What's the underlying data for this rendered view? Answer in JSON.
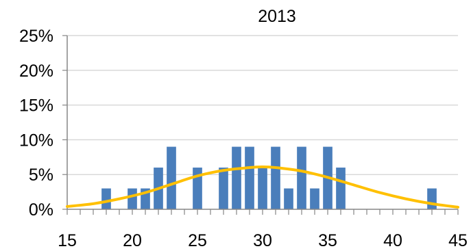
{
  "chart_data": {
    "type": "bar",
    "title": "2013",
    "xlabel": "",
    "ylabel": "",
    "xlim": [
      15,
      45
    ],
    "ylim": [
      0,
      25
    ],
    "x_ticks": [
      15,
      20,
      25,
      30,
      35,
      40,
      45
    ],
    "x_tick_labels": [
      "15",
      "20",
      "25",
      "30",
      "35",
      "40",
      "45"
    ],
    "y_ticks": [
      0,
      5,
      10,
      15,
      20,
      25
    ],
    "y_tick_labels": [
      "0%",
      "5%",
      "10%",
      "15%",
      "20%",
      "25%"
    ],
    "grid": "horizontal",
    "legend": "none",
    "series": [
      {
        "type": "bar",
        "color": "#4a7ebb",
        "points": [
          {
            "x": 18,
            "y": 3
          },
          {
            "x": 20,
            "y": 3
          },
          {
            "x": 21,
            "y": 3
          },
          {
            "x": 22,
            "y": 6
          },
          {
            "x": 23,
            "y": 9
          },
          {
            "x": 25,
            "y": 6
          },
          {
            "x": 27,
            "y": 6
          },
          {
            "x": 28,
            "y": 9
          },
          {
            "x": 29,
            "y": 9
          },
          {
            "x": 30,
            "y": 6
          },
          {
            "x": 31,
            "y": 9
          },
          {
            "x": 32,
            "y": 3
          },
          {
            "x": 33,
            "y": 9
          },
          {
            "x": 34,
            "y": 3
          },
          {
            "x": 35,
            "y": 9
          },
          {
            "x": 36,
            "y": 6
          },
          {
            "x": 43,
            "y": 3
          }
        ]
      },
      {
        "type": "line",
        "color": "#ffc000",
        "smooth": true,
        "points": [
          {
            "x": 15,
            "y": 0.4
          },
          {
            "x": 17,
            "y": 0.8
          },
          {
            "x": 19,
            "y": 1.5
          },
          {
            "x": 21,
            "y": 2.4
          },
          {
            "x": 23,
            "y": 3.6
          },
          {
            "x": 25,
            "y": 4.8
          },
          {
            "x": 27,
            "y": 5.6
          },
          {
            "x": 29,
            "y": 6.0
          },
          {
            "x": 30,
            "y": 6.1
          },
          {
            "x": 31,
            "y": 6.0
          },
          {
            "x": 33,
            "y": 5.5
          },
          {
            "x": 35,
            "y": 4.6
          },
          {
            "x": 37,
            "y": 3.5
          },
          {
            "x": 39,
            "y": 2.4
          },
          {
            "x": 41,
            "y": 1.5
          },
          {
            "x": 43,
            "y": 0.8
          },
          {
            "x": 45,
            "y": 0.3
          }
        ]
      }
    ]
  }
}
